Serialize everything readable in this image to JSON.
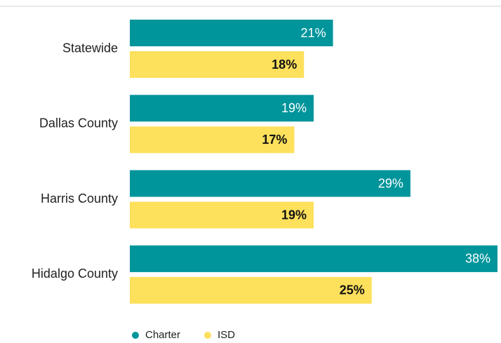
{
  "chart_data": {
    "type": "bar",
    "orientation": "horizontal",
    "categories": [
      "Statewide",
      "Dallas County",
      "Harris County",
      "Hidalgo County"
    ],
    "series": [
      {
        "name": "Charter",
        "color": "#00959b",
        "values": [
          21,
          19,
          29,
          38
        ],
        "value_labels": [
          "21%",
          "19%",
          "29%",
          "38%"
        ]
      },
      {
        "name": "ISD",
        "color": "#fde05c",
        "values": [
          18,
          17,
          19,
          25
        ],
        "value_labels": [
          "18%",
          "17%",
          "19%",
          "25%"
        ]
      }
    ]
  }
}
